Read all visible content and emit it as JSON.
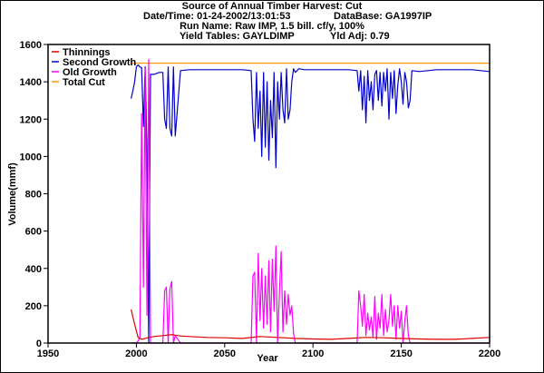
{
  "header": {
    "title": "Source of Annual Timber Harvest: Cut",
    "datetime": "Date/Time: 01-24-2002/13:01:53",
    "database": "DataBase: GA1997IP",
    "run_name": "Run Name: Raw IMP, 1.5 bill. cf/y, 100%",
    "yield_tables": "Yield Tables: GAYLDIMP",
    "yld_adj": "Yld Adj: 0.79"
  },
  "colors": {
    "thinnings": "#e00000",
    "second_growth": "#0000cc",
    "old_growth": "#ff00ff",
    "total_cut": "#ff9900",
    "axis": "#000000"
  },
  "chart_data": {
    "type": "line",
    "xlabel": "Year",
    "ylabel": "Volume(mmf)",
    "xlim": [
      1950,
      2200
    ],
    "ylim": [
      0,
      1600
    ],
    "xticks": [
      1950,
      2000,
      2050,
      2100,
      2150,
      2200
    ],
    "yticks": [
      0,
      200,
      400,
      600,
      800,
      1000,
      1200,
      1400,
      1600
    ],
    "grid": false,
    "legend_position": "top-left",
    "series": [
      {
        "name": "Thinnings",
        "color": "#e00000",
        "x": [
          1997,
          1999,
          2001,
          2003,
          2005,
          2007,
          2010,
          2015,
          2020,
          2025,
          2030,
          2040,
          2050,
          2060,
          2070,
          2080,
          2090,
          2100,
          2110,
          2120,
          2130,
          2140,
          2150,
          2160,
          2170,
          2180,
          2190,
          2200
        ],
        "y": [
          180,
          100,
          30,
          20,
          25,
          30,
          35,
          40,
          45,
          38,
          35,
          30,
          28,
          25,
          35,
          30,
          25,
          22,
          20,
          25,
          30,
          28,
          25,
          22,
          20,
          20,
          25,
          30
        ]
      },
      {
        "name": "Second Growth",
        "color": "#0000cc",
        "x": [
          1997,
          1998,
          1999,
          2000,
          2001,
          2002,
          2003,
          2004,
          2005,
          2006,
          2007,
          2008,
          2010,
          2013,
          2015,
          2016,
          2017,
          2018,
          2019,
          2020,
          2021,
          2022,
          2025,
          2030,
          2040,
          2050,
          2060,
          2065,
          2066,
          2067,
          2068,
          2069,
          2070,
          2071,
          2072,
          2073,
          2074,
          2075,
          2076,
          2077,
          2078,
          2079,
          2080,
          2081,
          2082,
          2083,
          2084,
          2085,
          2086,
          2087,
          2088,
          2089,
          2090,
          2091,
          2092,
          2095,
          2100,
          2110,
          2120,
          2125,
          2126,
          2127,
          2128,
          2129,
          2130,
          2131,
          2132,
          2133,
          2134,
          2135,
          2136,
          2137,
          2138,
          2139,
          2140,
          2141,
          2142,
          2143,
          2144,
          2145,
          2146,
          2147,
          2148,
          2149,
          2150,
          2151,
          2152,
          2153,
          2154,
          2155,
          2156,
          2160,
          2170,
          2180,
          2190,
          2195,
          2200
        ],
        "y": [
          1310,
          1350,
          1400,
          1480,
          1490,
          1480,
          1475,
          1160,
          1480,
          1030,
          0,
          1440,
          1440,
          1450,
          1450,
          1200,
          1150,
          1480,
          1150,
          1110,
          1480,
          1110,
          1460,
          1465,
          1465,
          1465,
          1465,
          1460,
          1200,
          1080,
          1450,
          1150,
          1350,
          1000,
          1450,
          1050,
          1400,
          980,
          1300,
          1100,
          1450,
          940,
          1400,
          1200,
          1450,
          1250,
          1180,
          1470,
          1200,
          1250,
          1400,
          1470,
          1450,
          1460,
          1470,
          1465,
          1465,
          1465,
          1465,
          1460,
          1350,
          1460,
          1250,
          1430,
          1180,
          1460,
          1300,
          1400,
          1250,
          1440,
          1460,
          1300,
          1450,
          1270,
          1450,
          1350,
          1470,
          1200,
          1450,
          1310,
          1460,
          1230,
          1380,
          1470,
          1400,
          1280,
          1450,
          1400,
          1260,
          1300,
          1460,
          1455,
          1465,
          1465,
          1465,
          1460,
          1455
        ]
      },
      {
        "name": "Old Growth",
        "color": "#ff00ff",
        "x": [
          1997,
          1999,
          2000,
          2001,
          2002,
          2003,
          2004,
          2005,
          2006,
          2007,
          2008,
          2010,
          2015,
          2016,
          2017,
          2018,
          2019,
          2020,
          2021,
          2022,
          2025,
          2030,
          2040,
          2050,
          2060,
          2065,
          2066,
          2067,
          2068,
          2069,
          2070,
          2071,
          2072,
          2073,
          2074,
          2075,
          2076,
          2077,
          2078,
          2079,
          2080,
          2081,
          2082,
          2083,
          2084,
          2085,
          2086,
          2087,
          2088,
          2089,
          2090,
          2095,
          2100,
          2110,
          2120,
          2125,
          2126,
          2127,
          2128,
          2129,
          2130,
          2131,
          2132,
          2133,
          2134,
          2135,
          2136,
          2137,
          2138,
          2139,
          2140,
          2141,
          2142,
          2143,
          2144,
          2145,
          2146,
          2147,
          2148,
          2149,
          2150,
          2151,
          2152,
          2153,
          2154,
          2155,
          2156,
          2160,
          2170,
          2180,
          2190,
          2200
        ],
        "y": [
          0,
          0,
          0,
          10,
          30,
          1230,
          300,
          1470,
          150,
          1520,
          0,
          0,
          0,
          280,
          300,
          0,
          290,
          330,
          0,
          40,
          0,
          0,
          0,
          0,
          0,
          0,
          360,
          380,
          0,
          480,
          120,
          400,
          80,
          360,
          100,
          440,
          60,
          450,
          170,
          520,
          0,
          270,
          490,
          60,
          280,
          100,
          260,
          150,
          200,
          50,
          0,
          0,
          0,
          0,
          0,
          0,
          280,
          200,
          90,
          260,
          40,
          160,
          70,
          140,
          30,
          250,
          20,
          160,
          80,
          260,
          40,
          180,
          60,
          120,
          260,
          90,
          200,
          20,
          200,
          80,
          170,
          0,
          120,
          200,
          40,
          0,
          0,
          0,
          0,
          0,
          0,
          0
        ]
      },
      {
        "name": "Total Cut",
        "color": "#ff9900",
        "x": [
          1997,
          2200
        ],
        "y": [
          1500,
          1500
        ]
      }
    ]
  }
}
